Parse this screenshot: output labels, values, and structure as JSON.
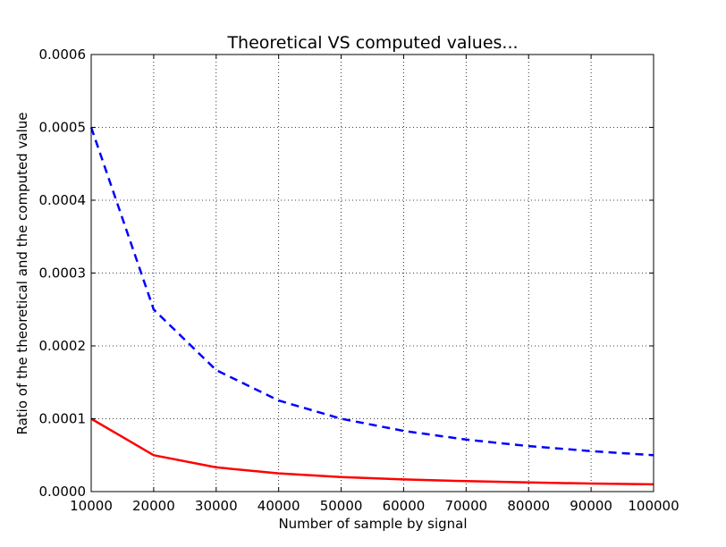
{
  "chart_data": {
    "type": "line",
    "title": "Theoretical VS computed values...",
    "xlabel": "Number of sample by signal",
    "ylabel": "Ratio of the theoretical and the computed value",
    "xlim": [
      10000,
      100000
    ],
    "ylim": [
      0,
      0.0006
    ],
    "grid": true,
    "x_ticks": [
      "10000",
      "20000",
      "30000",
      "40000",
      "50000",
      "60000",
      "70000",
      "80000",
      "90000",
      "100000"
    ],
    "y_ticks": [
      "0.0000",
      "0.0001",
      "0.0002",
      "0.0003",
      "0.0004",
      "0.0005",
      "0.0006"
    ],
    "x": [
      10000,
      20000,
      30000,
      40000,
      50000,
      60000,
      70000,
      80000,
      90000,
      100000
    ],
    "series": [
      {
        "color": "#0000ff",
        "style": "dashed",
        "values": [
          0.0005,
          0.00025,
          0.0001667,
          0.000125,
          0.0001,
          8.33e-05,
          7.14e-05,
          6.25e-05,
          5.56e-05,
          5e-05
        ]
      },
      {
        "color": "#ff0000",
        "style": "solid",
        "values": [
          0.0001,
          5e-05,
          3.33e-05,
          2.5e-05,
          2e-05,
          1.67e-05,
          1.43e-05,
          1.25e-05,
          1.11e-05,
          1e-05
        ]
      }
    ]
  }
}
